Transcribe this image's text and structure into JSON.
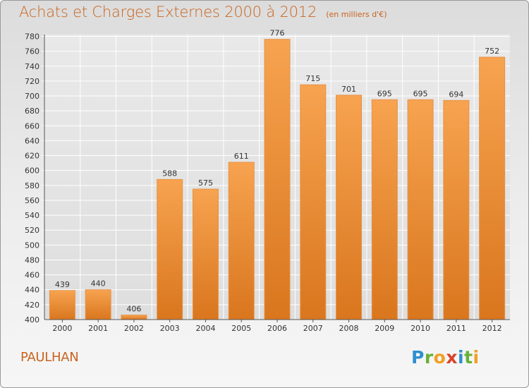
{
  "title": "Achats et Charges Externes 2000 à 2012",
  "unit_note": "(en milliers d'€)",
  "commune": "PAULHAN",
  "logo": {
    "letters": [
      "P",
      "r",
      "o",
      "x",
      "i",
      "t",
      "i"
    ],
    "colors": [
      "#2f8fd0",
      "#66b236",
      "#f0a022",
      "#d8432a",
      "#2f8fd0",
      "#66b236",
      "#f0a022"
    ]
  },
  "colors": {
    "bar_light": "#f7a350",
    "bar_dark": "#d9761e",
    "title": "#c8641e"
  },
  "chart_data": {
    "type": "bar",
    "title": "Achats et Charges Externes 2000 à 2012",
    "subtitle": "(en milliers d'€)",
    "categories": [
      "2000",
      "2001",
      "2002",
      "2003",
      "2004",
      "2005",
      "2006",
      "2007",
      "2008",
      "2009",
      "2010",
      "2011",
      "2012"
    ],
    "values": [
      439,
      440,
      406,
      588,
      575,
      611,
      776,
      715,
      701,
      695,
      695,
      694,
      752
    ],
    "ylim": [
      400,
      780
    ],
    "yticks": [
      400,
      420,
      440,
      460,
      480,
      500,
      520,
      540,
      560,
      580,
      600,
      620,
      640,
      660,
      680,
      700,
      720,
      740,
      760,
      780
    ],
    "grid": true,
    "data_labels": true,
    "xlabel": "",
    "ylabel": ""
  }
}
